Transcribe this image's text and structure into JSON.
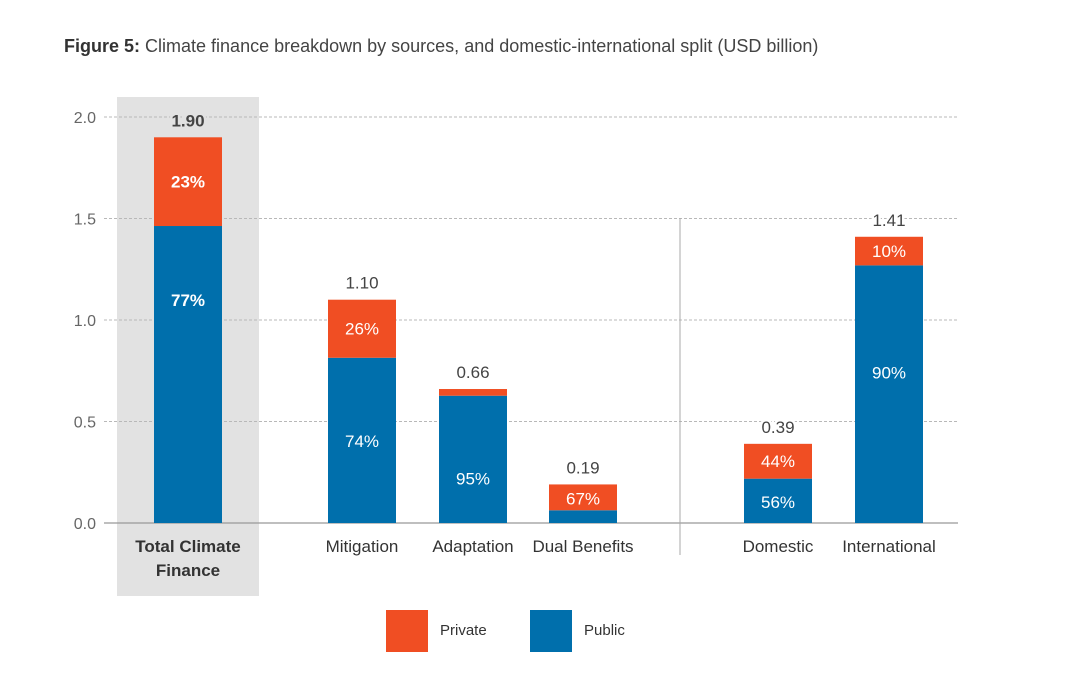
{
  "title": {
    "label": "Figure 5:",
    "text": "Climate finance breakdown by sources, and domestic-international split (USD billion)"
  },
  "colors": {
    "private": "#f04e23",
    "public": "#006fac",
    "highlight": "#e2e2e2",
    "grid": "#b8b8b8"
  },
  "chart_data": {
    "type": "bar",
    "stacked": true,
    "unit": "USD billion",
    "ylim": [
      0,
      2.0
    ],
    "yticks": [
      "0.0",
      "0.5",
      "1.0",
      "1.5",
      "2.0"
    ],
    "grid": true,
    "legend_position": "bottom-center",
    "groups": [
      {
        "categories": [
          {
            "label": [
              "Total Climate",
              "Finance"
            ],
            "total": 1.9,
            "total_label": "1.90",
            "private_share": 0.23,
            "public_label": "77%",
            "private_label": "23%",
            "bold": true,
            "highlight": true
          }
        ]
      },
      {
        "categories": [
          {
            "label": [
              "Mitigation"
            ],
            "total": 1.1,
            "total_label": "1.10",
            "private_share": 0.26,
            "public_label": "74%",
            "private_label": "26%"
          },
          {
            "label": [
              "Adaptation"
            ],
            "total": 0.66,
            "total_label": "0.66",
            "private_share": 0.05,
            "public_label": "95%",
            "private_label": ""
          },
          {
            "label": [
              "Dual Benefits"
            ],
            "total": 0.19,
            "total_label": "0.19",
            "private_share": 0.67,
            "public_label": "",
            "private_label": "67%"
          }
        ]
      },
      {
        "categories": [
          {
            "label": [
              "Domestic"
            ],
            "total": 0.39,
            "total_label": "0.39",
            "private_share": 0.44,
            "public_label": "56%",
            "private_label": "44%"
          },
          {
            "label": [
              "International"
            ],
            "total": 1.41,
            "total_label": "1.41",
            "private_share": 0.1,
            "public_label": "90%",
            "private_label": "10%"
          }
        ]
      }
    ],
    "series": [
      {
        "name": "Private",
        "key": "private"
      },
      {
        "name": "Public",
        "key": "public"
      }
    ]
  }
}
